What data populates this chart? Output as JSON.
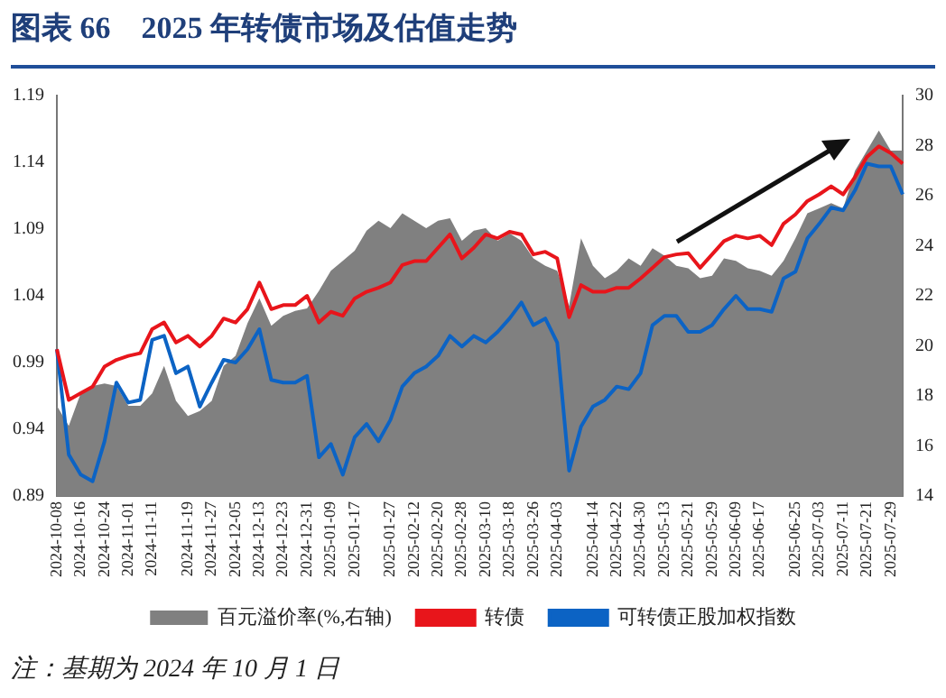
{
  "chart_data": {
    "type": "line",
    "title": "图表 66　2025 年转债市场及估值走势",
    "categories": [
      "2024-10-08",
      null,
      "2024-10-16",
      null,
      "2024-10-24",
      null,
      "2024-11-01",
      null,
      "2024-11-11",
      null,
      null,
      "2024-11-19",
      null,
      "2024-11-27",
      null,
      "2024-12-05",
      null,
      "2024-12-13",
      null,
      "2024-12-23",
      null,
      "2024-12-31",
      null,
      "2025-01-09",
      null,
      "2025-01-17",
      null,
      null,
      "2025-01-27",
      null,
      "2025-02-12",
      null,
      "2025-02-20",
      null,
      "2025-02-28",
      null,
      "2025-03-10",
      null,
      "2025-03-18",
      null,
      "2025-03-26",
      null,
      "2025-04-03",
      null,
      null,
      "2025-04-14",
      null,
      "2025-04-22",
      null,
      "2025-04-30",
      null,
      "2025-05-13",
      null,
      "2025-05-21",
      null,
      "2025-05-29",
      null,
      "2025-06-09",
      null,
      "2025-06-17",
      null,
      null,
      "2025-06-25",
      null,
      "2025-07-03",
      null,
      "2025-07-11",
      null,
      "2025-07-21",
      null,
      "2025-07-29",
      null
    ],
    "series": [
      {
        "name": "百元溢价率(%,右轴)",
        "type": "area",
        "axis": "y2",
        "color": "#808080",
        "values": [
          17.6,
          16.8,
          18.1,
          18.4,
          18.5,
          18.4,
          17.6,
          17.6,
          18.1,
          19.2,
          17.8,
          17.2,
          17.4,
          17.8,
          19.2,
          19.6,
          20.9,
          21.9,
          20.8,
          21.2,
          21.4,
          21.5,
          22.2,
          23.0,
          23.4,
          23.8,
          24.6,
          25.0,
          24.7,
          25.3,
          25.0,
          24.7,
          25.0,
          25.1,
          24.2,
          24.6,
          24.7,
          24.2,
          24.5,
          24.2,
          23.5,
          23.2,
          23.0,
          21.6,
          24.3,
          23.2,
          22.7,
          23.0,
          23.5,
          23.2,
          23.9,
          23.6,
          23.2,
          23.1,
          22.7,
          22.8,
          23.5,
          23.4,
          23.1,
          23.0,
          22.8,
          23.4,
          24.3,
          25.3,
          25.5,
          25.7,
          25.5,
          27.0,
          27.8,
          28.6,
          27.8,
          27.8
        ]
      },
      {
        "name": "转债",
        "color": "#e8151b",
        "values": [
          1.0,
          0.962,
          0.967,
          0.972,
          0.987,
          0.992,
          0.995,
          0.997,
          1.015,
          1.02,
          1.005,
          1.01,
          1.002,
          1.01,
          1.023,
          1.02,
          1.03,
          1.05,
          1.03,
          1.033,
          1.033,
          1.04,
          1.02,
          1.028,
          1.025,
          1.038,
          1.043,
          1.046,
          1.05,
          1.063,
          1.066,
          1.066,
          1.076,
          1.086,
          1.068,
          1.076,
          1.086,
          1.083,
          1.088,
          1.086,
          1.071,
          1.073,
          1.068,
          1.024,
          1.048,
          1.043,
          1.043,
          1.046,
          1.046,
          1.053,
          1.061,
          1.069,
          1.071,
          1.072,
          1.061,
          1.071,
          1.081,
          1.085,
          1.083,
          1.085,
          1.078,
          1.094,
          1.101,
          1.111,
          1.116,
          1.122,
          1.116,
          1.129,
          1.144,
          1.152,
          1.147,
          1.139
        ]
      },
      {
        "name": "可转债正股加权指数",
        "color": "#0c63c4",
        "values": [
          1.0,
          0.921,
          0.906,
          0.901,
          0.931,
          0.975,
          0.96,
          0.962,
          1.007,
          1.01,
          0.982,
          0.987,
          0.957,
          0.975,
          0.992,
          0.99,
          1.0,
          1.015,
          0.977,
          0.975,
          0.975,
          0.98,
          0.919,
          0.929,
          0.906,
          0.934,
          0.944,
          0.931,
          0.947,
          0.972,
          0.982,
          0.987,
          0.995,
          1.01,
          1.002,
          1.01,
          1.005,
          1.013,
          1.023,
          1.035,
          1.018,
          1.023,
          1.005,
          0.909,
          0.942,
          0.957,
          0.962,
          0.972,
          0.97,
          0.982,
          1.018,
          1.025,
          1.025,
          1.013,
          1.013,
          1.018,
          1.03,
          1.04,
          1.03,
          1.03,
          1.028,
          1.053,
          1.058,
          1.083,
          1.094,
          1.106,
          1.104,
          1.119,
          1.139,
          1.137,
          1.137,
          1.116
        ]
      }
    ],
    "ylim": [
      0.89,
      1.19
    ],
    "yticks": [
      0.89,
      0.94,
      0.99,
      1.04,
      1.09,
      1.14,
      1.19
    ],
    "y2lim": [
      14,
      30
    ],
    "y2ticks": [
      14,
      16,
      18,
      20,
      22,
      24,
      26,
      28,
      30
    ],
    "grid": false,
    "legend": "bottom",
    "marker": "none",
    "line_style": "solid",
    "annotations": [
      "注：基期为 2024 年 10 月 1 日"
    ]
  }
}
